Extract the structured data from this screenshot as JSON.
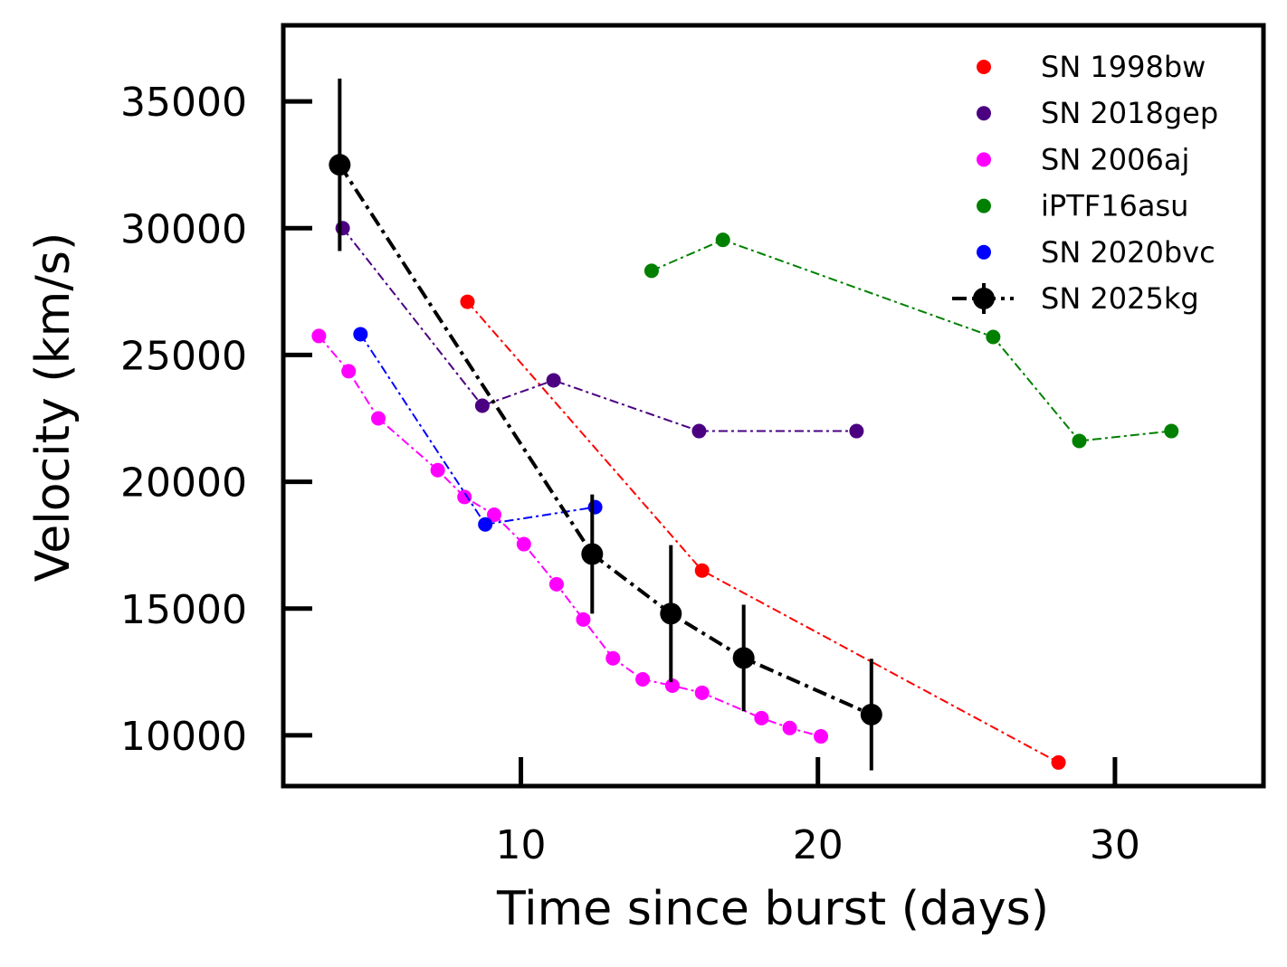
{
  "chart_data": {
    "type": "line",
    "title": "",
    "xlabel": "Time since burst (days)",
    "ylabel": "Velocity (km/s)",
    "xlim": [
      2,
      35
    ],
    "ylim": [
      8000,
      38000
    ],
    "xticks": [
      10,
      20,
      30
    ],
    "yticks": [
      10000,
      15000,
      20000,
      25000,
      30000,
      35000
    ],
    "grid": false,
    "legend_position": "top-right",
    "series": [
      {
        "name": "SN 1998bw",
        "color": "#ff0000",
        "line": "dashdot",
        "x": [
          8.2,
          16.1,
          28.1
        ],
        "y": [
          27100,
          16500,
          8930
        ]
      },
      {
        "name": "SN 2018gep",
        "color": "#4b0082",
        "line": "dashdot",
        "x": [
          4.0,
          8.7,
          11.1,
          16.0,
          21.3
        ],
        "y": [
          30000,
          23000,
          24000,
          22000,
          22000
        ]
      },
      {
        "name": "SN 2006aj",
        "color": "#ff00ff",
        "line": "dashdot",
        "x": [
          3.2,
          4.2,
          5.2,
          7.2,
          8.1,
          9.1,
          10.1,
          11.2,
          12.1,
          13.1,
          14.1,
          15.1,
          16.1,
          18.1,
          19.05,
          20.1
        ],
        "y": [
          25750,
          24360,
          22500,
          20460,
          19400,
          18700,
          17540,
          15960,
          14570,
          13040,
          12210,
          11960,
          11680,
          10680,
          10290,
          9960
        ]
      },
      {
        "name": "iPTF16asu",
        "color": "#008000",
        "line": "dashdot",
        "x": [
          14.4,
          16.8,
          25.9,
          28.8,
          31.9
        ],
        "y": [
          28320,
          29540,
          25710,
          21610,
          22000
        ]
      },
      {
        "name": "SN 2020bvc",
        "color": "#0000ff",
        "line": "dashdot",
        "x": [
          4.6,
          8.8,
          12.5
        ],
        "y": [
          25820,
          18320,
          19000
        ]
      },
      {
        "name": "SN 2025kg",
        "color": "#000000",
        "line": "dashdot",
        "errorbars": true,
        "x": [
          3.9,
          12.4,
          15.05,
          17.5,
          21.8
        ],
        "y": [
          32500,
          17150,
          14800,
          13050,
          10820
        ],
        "yerr": [
          3400,
          2350,
          2700,
          2100,
          2200
        ]
      }
    ]
  }
}
